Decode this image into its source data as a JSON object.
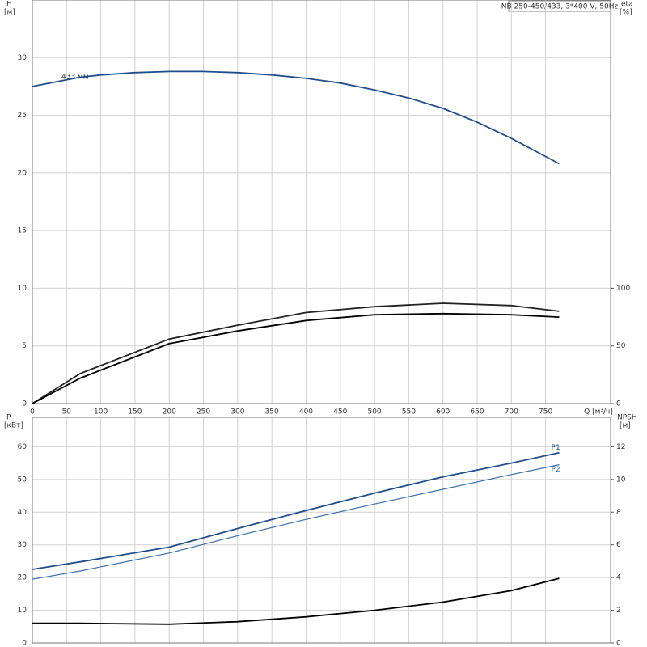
{
  "chart_data": [
    {
      "type": "line",
      "title": "NB 250-450/433, 3*400 V, 50Hz",
      "ylabel": "H",
      "yunit": "[м]",
      "y2label": "eta",
      "y2unit": "[%]",
      "xlabel": "Q [м³/ч]",
      "annotation": "433 мм",
      "xlim": [
        0,
        845
      ],
      "xticks": [
        0,
        50,
        100,
        150,
        200,
        250,
        300,
        350,
        400,
        450,
        500,
        550,
        600,
        650,
        700,
        750
      ],
      "ylim": [
        0,
        35
      ],
      "yticks": [
        0,
        5,
        10,
        15,
        20,
        25,
        30
      ],
      "y2lim": [
        0,
        350
      ],
      "y2ticks": [
        0,
        50,
        100
      ],
      "grid": true,
      "series": [
        {
          "color": "#1f4e8c",
          "x": [
            0,
            70,
            100,
            150,
            200,
            250,
            300,
            350,
            400,
            450,
            500,
            550,
            600,
            650,
            700,
            770
          ],
          "values": [
            27.5,
            28.3,
            28.5,
            28.7,
            28.8,
            28.8,
            28.7,
            28.5,
            28.2,
            27.8,
            27.2,
            26.5,
            25.6,
            24.4,
            23.0,
            20.8
          ]
        },
        {
          "color": "#222222",
          "axis": "y2",
          "x": [
            0,
            70,
            100,
            200,
            300,
            400,
            500,
            600,
            700,
            770
          ],
          "values": [
            0,
            26,
            33,
            56,
            68,
            79,
            84,
            87,
            85,
            80
          ]
        },
        {
          "color": "#000000",
          "axis": "y2",
          "x": [
            0,
            70,
            100,
            200,
            300,
            400,
            500,
            600,
            700,
            770
          ],
          "values": [
            0,
            22,
            29,
            52,
            63,
            72,
            77,
            78,
            77,
            75
          ]
        }
      ]
    },
    {
      "type": "line",
      "ylabel": "P",
      "yunit": "[кВт]",
      "y2label": "NPSH",
      "y2unit": "[м]",
      "xlim": [
        0,
        845
      ],
      "xticks": [
        0,
        50,
        100,
        150,
        200,
        250,
        300,
        350,
        400,
        450,
        500,
        550,
        600,
        650,
        700,
        750
      ],
      "ylim": [
        0,
        69
      ],
      "yticks": [
        0,
        10,
        20,
        30,
        40,
        50,
        60
      ],
      "y2lim": [
        0,
        13.8
      ],
      "y2ticks": [
        0,
        2,
        4,
        6,
        8,
        10,
        12
      ],
      "grid": true,
      "series": [
        {
          "name": "P1",
          "color": "#1f4e8c",
          "x": [
            0,
            70,
            200,
            300,
            400,
            500,
            600,
            700,
            770
          ],
          "values": [
            22.5,
            24.8,
            29.3,
            35,
            40.5,
            45.8,
            50.8,
            55,
            58.2
          ]
        },
        {
          "name": "P2",
          "color": "#3a6fb0",
          "x": [
            0,
            70,
            200,
            300,
            400,
            500,
            600,
            700,
            770
          ],
          "values": [
            19.5,
            22,
            27.5,
            32.8,
            37.8,
            42.5,
            47,
            51.5,
            54.5
          ]
        },
        {
          "color": "#000000",
          "axis": "y2",
          "x": [
            0,
            70,
            200,
            300,
            400,
            500,
            600,
            700,
            770
          ],
          "values": [
            1.2,
            1.2,
            1.15,
            1.3,
            1.6,
            2.0,
            2.5,
            3.2,
            3.95
          ]
        }
      ]
    }
  ]
}
